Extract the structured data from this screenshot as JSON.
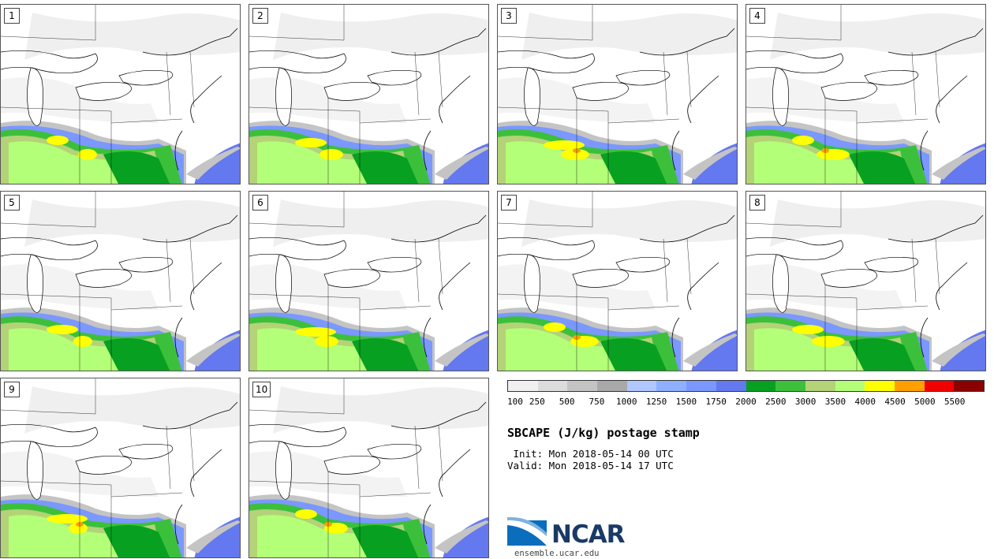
{
  "panels": [
    {
      "label": "1",
      "variant": 0
    },
    {
      "label": "2",
      "variant": 1
    },
    {
      "label": "3",
      "variant": 2
    },
    {
      "label": "4",
      "variant": 3
    },
    {
      "label": "5",
      "variant": 4
    },
    {
      "label": "6",
      "variant": 5
    },
    {
      "label": "7",
      "variant": 6
    },
    {
      "label": "8",
      "variant": 7
    },
    {
      "label": "9",
      "variant": 8
    },
    {
      "label": "10",
      "variant": 9
    }
  ],
  "colorbar": {
    "colors": [
      "#f0f0f0",
      "#dcdcdc",
      "#c4c4c4",
      "#a9a9a9",
      "#b0c8ff",
      "#8fb0ff",
      "#7a98ff",
      "#6478f0",
      "#08a020",
      "#3cc03c",
      "#b4d278",
      "#b4ff78",
      "#ffff00",
      "#ffa000",
      "#f00000",
      "#8c0000"
    ],
    "tick_labels": [
      "100",
      "250",
      "500",
      "750",
      "1000",
      "1250",
      "1500",
      "1750",
      "2000",
      "2500",
      "3000",
      "3500",
      "4000",
      "4500",
      "5000",
      "5500"
    ]
  },
  "title": "SBCAPE (J/kg) postage stamp",
  "init_line": " Init: Mon 2018-05-14 00 UTC",
  "valid_line": "Valid: Mon 2018-05-14 17 UTC",
  "logo": {
    "text": "NCAR",
    "site": "ensemble.ucar.edu"
  }
}
